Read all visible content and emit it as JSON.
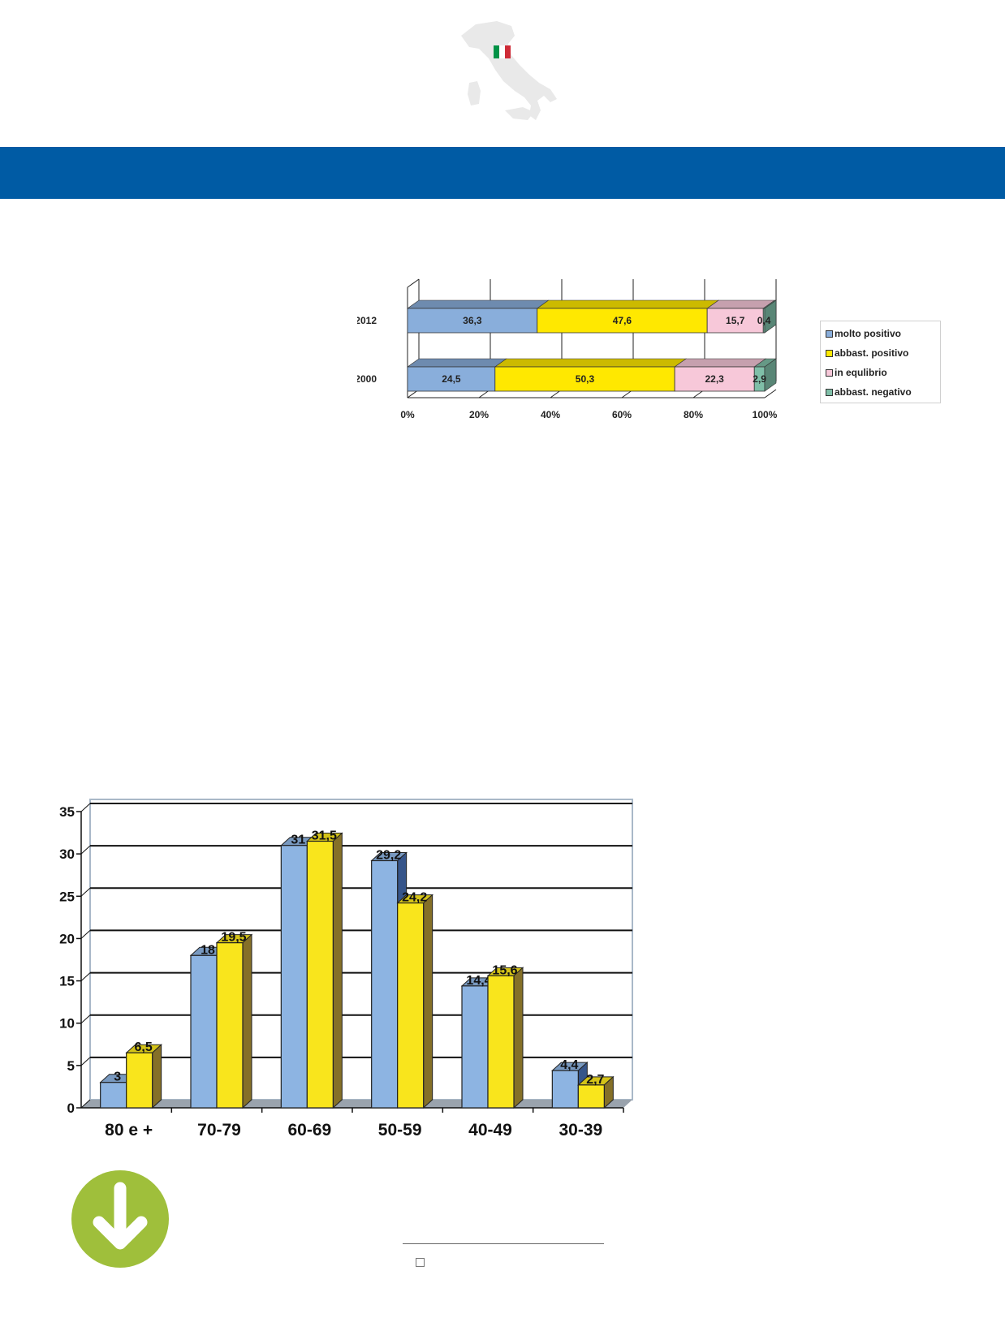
{
  "brand": {
    "banner_color": "#005ba4",
    "map_icon": "italy-map-icon",
    "flag_colors": [
      "#009246",
      "#ffffff",
      "#ce2b37"
    ],
    "download_icon": "download-arrow-icon",
    "download_color": "#9fbf3b"
  },
  "chart_data": [
    {
      "type": "bar",
      "orientation": "horizontal",
      "stacked": true,
      "percent": true,
      "categories": [
        "2012",
        "2000"
      ],
      "series": [
        {
          "name": "molto positivo",
          "values": [
            36.3,
            24.5
          ],
          "labels": [
            "36,3",
            "24,5"
          ],
          "color": "#89aedb"
        },
        {
          "name": "abbast. positivo",
          "values": [
            47.6,
            50.3
          ],
          "labels": [
            "47,6",
            "50,3"
          ],
          "color": "#ffe800"
        },
        {
          "name": "in equlibrio",
          "values": [
            15.7,
            22.3
          ],
          "labels": [
            "15,7",
            "22,3"
          ],
          "color": "#f7c8d9"
        },
        {
          "name": "abbast. negativo",
          "values": [
            0.4,
            2.9
          ],
          "labels": [
            "0,4",
            "2,9"
          ],
          "color": "#7fbfa8"
        }
      ],
      "x_ticks": [
        "0%",
        "20%",
        "40%",
        "60%",
        "80%",
        "100%"
      ],
      "xlim": [
        0,
        100
      ],
      "grid": true,
      "legend_position": "right"
    },
    {
      "type": "bar",
      "categories": [
        "80 e +",
        "70-79",
        "60-69",
        "50-59",
        "40-49",
        "30-39"
      ],
      "series": [
        {
          "values": [
            3,
            18,
            31,
            29.2,
            14.4,
            4.4
          ],
          "labels": [
            "3",
            "18",
            "31",
            "29,2",
            "14,4",
            "4,4"
          ],
          "color": "#8db4e2"
        },
        {
          "values": [
            6.5,
            19.5,
            31.5,
            24.2,
            15.6,
            2.7
          ],
          "labels": [
            "6,5",
            "19,5",
            "31,5",
            "24,2",
            "15,6",
            "2,7"
          ],
          "color": "#f9e51c"
        }
      ],
      "y_ticks": [
        "0",
        "5",
        "10",
        "15",
        "20",
        "25",
        "30",
        "35"
      ],
      "ylim": [
        0,
        35
      ],
      "grid": true
    }
  ]
}
